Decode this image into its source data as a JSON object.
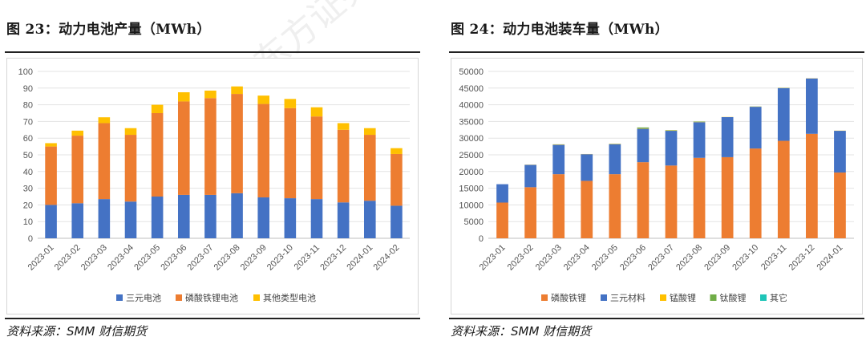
{
  "watermark": "东方证券",
  "left": {
    "title": "图 23：动力电池产量（MWh）",
    "source": "资料来源：SMM 财信期货"
  },
  "right": {
    "title": "图 24：动力电池装车量（MWh）",
    "source": "资料来源：SMM 财信期货"
  },
  "chart_data": [
    {
      "type": "bar",
      "stacked": true,
      "title": "图 23：动力电池产量（MWh）",
      "categories": [
        "2023-01",
        "2023-02",
        "2023-03",
        "2023-04",
        "2023-05",
        "2023-06",
        "2023-07",
        "2023-08",
        "2023-09",
        "2023-10",
        "2023-11",
        "2023-12",
        "2024-01",
        "2024-02"
      ],
      "series": [
        {
          "name": "三元电池",
          "color": "#4472C4",
          "values": [
            20,
            21,
            23.5,
            22,
            25,
            26,
            26,
            27,
            24.5,
            24,
            23.5,
            21.5,
            22.5,
            19.5
          ]
        },
        {
          "name": "磷酸铁锂电池",
          "color": "#ED7D31",
          "values": [
            35,
            40.5,
            45.5,
            40,
            50,
            56,
            58,
            59.5,
            56,
            54,
            49.5,
            43.5,
            39.5,
            31
          ]
        },
        {
          "name": "其他类型电池",
          "color": "#FFC000",
          "values": [
            2,
            3,
            3.5,
            4,
            5,
            5.5,
            4.5,
            4.5,
            5,
            5.5,
            5.5,
            4,
            4,
            3.5
          ]
        }
      ],
      "ylim": [
        0,
        100
      ],
      "yticks": [
        0,
        10,
        20,
        30,
        40,
        50,
        60,
        70,
        80,
        90,
        100
      ],
      "grid": true,
      "legend": "bottom"
    },
    {
      "type": "bar",
      "stacked": true,
      "title": "图 24：动力电池装车量（MWh）",
      "categories": [
        "2023-01",
        "2023-02",
        "2023-03",
        "2023-04",
        "2023-05",
        "2023-06",
        "2023-07",
        "2023-08",
        "2023-09",
        "2023-10",
        "2023-11",
        "2023-12",
        "2024-01"
      ],
      "series": [
        {
          "name": "磷酸铁锂",
          "color": "#ED7D31",
          "values": [
            10700,
            15300,
            19200,
            17200,
            19200,
            22800,
            21800,
            24100,
            24300,
            26900,
            29200,
            31300,
            19700
          ]
        },
        {
          "name": "三元材料",
          "color": "#4472C4",
          "values": [
            5500,
            6700,
            8800,
            8000,
            9000,
            10000,
            10400,
            10700,
            12000,
            12500,
            15800,
            16600,
            12500
          ]
        },
        {
          "name": "锰酸锂",
          "color": "#FFC000",
          "values": [
            0,
            50,
            100,
            50,
            100,
            100,
            100,
            100,
            50,
            50,
            50,
            50,
            50
          ]
        },
        {
          "name": "钛酸锂",
          "color": "#70AD47",
          "values": [
            0,
            0,
            50,
            0,
            50,
            300,
            100,
            100,
            0,
            50,
            50,
            0,
            0
          ]
        },
        {
          "name": "其它",
          "color": "#1FC5B8",
          "values": [
            0,
            0,
            0,
            0,
            0,
            0,
            0,
            0,
            0,
            0,
            0,
            0,
            0
          ]
        }
      ],
      "ylim": [
        0,
        50000
      ],
      "yticks": [
        0,
        5000,
        10000,
        15000,
        20000,
        25000,
        30000,
        35000,
        40000,
        45000,
        50000
      ],
      "grid": true,
      "legend": "bottom"
    }
  ]
}
